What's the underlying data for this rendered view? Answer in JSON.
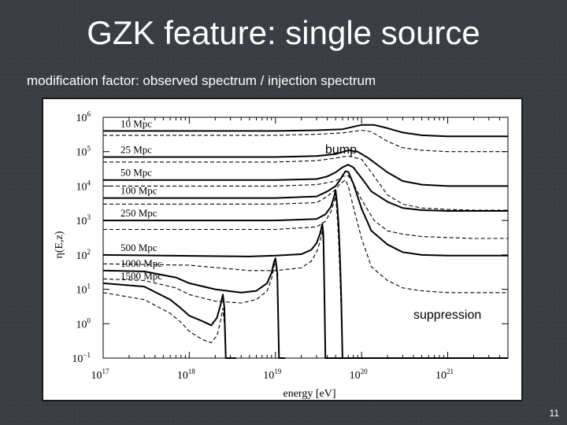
{
  "slide": {
    "title": "GZK feature: single source",
    "subtitle": "modification factor: observed spectrum / injection spectrum",
    "page_number": "11"
  },
  "colors": {
    "background": "#3b3d44",
    "title_text": "#ffffff",
    "figure_bg": "#ffffff",
    "curve": "#000000"
  },
  "chart_data": {
    "type": "line",
    "xlabel": "energy [eV]",
    "ylabel": "η(E,z)",
    "x_scale": "log",
    "y_scale": "log",
    "xlim": [
      1e+17,
      5e+21
    ],
    "ylim": [
      0.1,
      1000000
    ],
    "x_ticks": [
      {
        "value": 1e+17,
        "base": "10",
        "exp": "17"
      },
      {
        "value": 1e+18,
        "base": "10",
        "exp": "18"
      },
      {
        "value": 1e+19,
        "base": "10",
        "exp": "19"
      },
      {
        "value": 1e+20,
        "base": "10",
        "exp": "20"
      },
      {
        "value": 1e+21,
        "base": "10",
        "exp": "21"
      }
    ],
    "y_ticks": [
      {
        "value": 0.1,
        "base": "10",
        "exp": "−1"
      },
      {
        "value": 1,
        "base": "10",
        "exp": "0"
      },
      {
        "value": 10,
        "base": "10",
        "exp": "1"
      },
      {
        "value": 100,
        "base": "10",
        "exp": "2"
      },
      {
        "value": 1000,
        "base": "10",
        "exp": "3"
      },
      {
        "value": 10000,
        "base": "10",
        "exp": "4"
      },
      {
        "value": 100000,
        "base": "10",
        "exp": "5"
      },
      {
        "value": 1000000,
        "base": "10",
        "exp": "6"
      }
    ],
    "grid": false,
    "legend": "curve labels at left",
    "annotations": [
      "bump",
      "suppression"
    ],
    "series": [
      {
        "name": "10 Mpc",
        "style": "solid",
        "x": [
          1e+17,
          1e+19,
          3e+19,
          6e+19,
          1e+20,
          1.4e+20,
          2e+20,
          3e+20,
          5e+20,
          1e+21,
          2e+21,
          5e+21
        ],
        "y": [
          400000,
          400000,
          420000,
          450000,
          600000,
          600000,
          480000,
          360000,
          300000,
          280000,
          280000,
          280000
        ]
      },
      {
        "name": "10 Mpc",
        "style": "dashed",
        "x": [
          1e+17,
          1e+19,
          3e+19,
          6e+19,
          1e+20,
          1.3e+20,
          2e+20,
          3e+20,
          5e+20,
          1e+21,
          2e+21,
          5e+21
        ],
        "y": [
          300000,
          300000,
          320000,
          350000,
          420000,
          380000,
          200000,
          130000,
          110000,
          100000,
          100000,
          100000
        ]
      },
      {
        "name": "25 Mpc",
        "style": "solid",
        "x": [
          1e+17,
          1e+19,
          3e+19,
          5e+19,
          7e+19,
          9e+19,
          1.2e+20,
          2e+20,
          3e+20,
          5e+20,
          1e+21,
          2e+21,
          5e+21
        ],
        "y": [
          70000,
          70000,
          75000,
          85000,
          110000,
          100000,
          65000,
          25000,
          14000,
          11000,
          10000,
          10000,
          10000
        ]
      },
      {
        "name": "25 Mpc",
        "style": "dashed",
        "x": [
          1e+17,
          1e+19,
          3e+19,
          5e+19,
          7e+19,
          1e+20,
          1.3e+20,
          2e+20,
          3e+20,
          5e+20,
          1e+21,
          2e+21,
          5e+21
        ],
        "y": [
          50000,
          50000,
          55000,
          65000,
          75000,
          60000,
          25000,
          5500,
          3000,
          2300,
          2100,
          2000,
          2000
        ]
      },
      {
        "name": "50 Mpc",
        "style": "solid",
        "x": [
          1e+17,
          1e+19,
          3e+19,
          4e+19,
          5e+19,
          6e+19,
          7e+19,
          8e+19,
          1e+20,
          1.3e+20,
          2e+20,
          3e+20,
          5e+20,
          1e+21,
          2e+21,
          5e+21
        ],
        "y": [
          15000,
          15000,
          16000,
          19000,
          25000,
          35000,
          42000,
          35000,
          17000,
          7000,
          3500,
          2300,
          2000,
          1900,
          1900,
          1900
        ]
      },
      {
        "name": "50 Mpc",
        "style": "dashed",
        "x": [
          1e+17,
          1e+19,
          3e+19,
          5e+19,
          6e+19,
          7e+19,
          8e+19,
          1e+20,
          1.4e+20,
          2e+20,
          3e+20,
          5e+20,
          1e+21,
          2e+21,
          5e+21
        ],
        "y": [
          10000,
          10000,
          11000,
          14000,
          19000,
          20000,
          12000,
          4000,
          1000,
          500,
          400,
          340,
          320,
          300,
          300
        ]
      },
      {
        "name": "100 Mpc",
        "style": "solid",
        "x": [
          1e+17,
          1e+19,
          3e+19,
          4e+19,
          5e+19,
          5.5e+19,
          6e+19,
          6.5e+19,
          7e+19,
          8e+19,
          1e+20,
          1.3e+20,
          2e+20,
          3e+20,
          5e+20,
          1e+21,
          2e+21,
          5e+21
        ],
        "y": [
          4500,
          4500,
          5000,
          7000,
          10000,
          14000,
          20000,
          27000,
          26000,
          12000,
          2200,
          500,
          200,
          120,
          100,
          95,
          95,
          95
        ]
      },
      {
        "name": "100 Mpc",
        "style": "dashed",
        "x": [
          1e+17,
          1e+19,
          3e+19,
          4e+19,
          5e+19,
          5.5e+19,
          6e+19,
          6.5e+19,
          7e+19,
          8e+19,
          1e+20,
          1.3e+20,
          2e+20,
          3e+20,
          5e+20,
          1e+21,
          2e+21,
          5e+21
        ],
        "y": [
          3000,
          3000,
          3300,
          5000,
          8000,
          11000,
          13000,
          15000,
          10000,
          2500,
          300,
          45,
          18,
          11,
          9,
          8,
          8,
          8
        ]
      },
      {
        "name": "250 Mpc",
        "style": "solid",
        "x": [
          1e+17,
          1e+19,
          3e+19,
          3.8e+19,
          4.4e+19,
          4.8e+19,
          5e+19,
          5.2e+19,
          5.4e+19,
          5.6e+19,
          5.8e+19,
          6e+19,
          7e+19,
          1e+20,
          1.5e+20,
          2e+20,
          3e+20,
          5e+20,
          1e+21,
          2e+21,
          5e+21
        ],
        "y": [
          1000,
          1000,
          1100,
          1500,
          2500,
          5000,
          7500,
          3000,
          800,
          100,
          6,
          0.1,
          0.1,
          0.1,
          0.1,
          0.1,
          0.1,
          0.1,
          0.1,
          0.1,
          0.1
        ]
      },
      {
        "name": "250 Mpc",
        "style": "dashed",
        "x": [
          1e+17,
          1e+19,
          3e+19,
          3.8e+19,
          4.4e+19,
          4.8e+19,
          5e+19,
          5.2e+19,
          5.4e+19,
          5.6e+19,
          5.8e+19,
          6e+19,
          7e+19
        ],
        "y": [
          550,
          550,
          650,
          950,
          1800,
          3500,
          5000,
          1500,
          300,
          30,
          2,
          0.1,
          0.1
        ]
      },
      {
        "name": "500 Mpc",
        "style": "solid",
        "x": [
          1e+17,
          5e+18,
          1e+19,
          2e+19,
          2.6e+19,
          3e+19,
          3.3e+19,
          3.5e+19,
          3.6e+19,
          3.7e+19,
          3.8e+19,
          5e+19,
          1e+20
        ],
        "y": [
          100,
          90,
          95,
          105,
          140,
          220,
          420,
          800,
          400,
          10,
          0.1,
          0.1,
          0.1
        ]
      },
      {
        "name": "500 Mpc",
        "style": "dashed",
        "x": [
          1e+17,
          1e+18,
          5e+18,
          1e+19,
          2e+19,
          2.6e+19,
          3e+19,
          3.3e+19,
          3.5e+19,
          3.6e+19,
          3.7e+19,
          3.8e+19,
          5e+19
        ],
        "y": [
          55,
          50,
          35,
          35,
          42,
          65,
          120,
          250,
          500,
          200,
          5,
          0.1,
          0.1
        ]
      },
      {
        "name": "1000 Mpc",
        "style": "solid",
        "x": [
          1e+17,
          3e+17,
          7e+17,
          1e+18,
          2e+18,
          4e+18,
          6e+18,
          8e+18,
          9e+18,
          9.6e+18,
          1e+19,
          1.05e+19,
          1.1e+19,
          1.3e+19
        ],
        "y": [
          35,
          33,
          22,
          15,
          10,
          8,
          9,
          15,
          30,
          60,
          80,
          30,
          0.1,
          0.1
        ]
      },
      {
        "name": "1000 Mpc",
        "style": "dashed",
        "x": [
          1e+17,
          3e+17,
          7e+17,
          1e+18,
          2e+18,
          4e+18,
          6e+18,
          8e+18,
          9e+18,
          9.6e+18,
          1e+19,
          1.05e+19,
          1.1e+19,
          1.3e+19
        ],
        "y": [
          20,
          18,
          11,
          7,
          4.5,
          4,
          5,
          9,
          20,
          45,
          65,
          20,
          0.1,
          0.1
        ]
      },
      {
        "name": "1500 Mpc",
        "style": "solid",
        "x": [
          1e+17,
          3e+17,
          6e+17,
          8e+17,
          1e+18,
          1.4e+18,
          1.8e+18,
          2.1e+18,
          2.3e+18,
          2.45e+18,
          2.55e+18,
          2.65e+18,
          2.8e+18,
          3.5e+18
        ],
        "y": [
          15,
          12,
          5,
          2.8,
          1.7,
          1.2,
          0.9,
          1.5,
          3.5,
          7,
          3,
          0.1,
          0.1,
          0.1
        ]
      },
      {
        "name": "1500 Mpc",
        "style": "dashed",
        "x": [
          1e+17,
          3e+17,
          6e+17,
          8e+17,
          1e+18,
          1.4e+18,
          1.8e+18,
          2.1e+18,
          2.3e+18,
          2.45e+18,
          2.55e+18,
          2.65e+18,
          2.8e+18,
          3.5e+18
        ],
        "y": [
          8,
          5,
          2,
          1.1,
          0.6,
          0.35,
          0.28,
          0.45,
          1.2,
          2.8,
          1,
          0.1,
          0.1,
          0.1
        ]
      }
    ]
  }
}
